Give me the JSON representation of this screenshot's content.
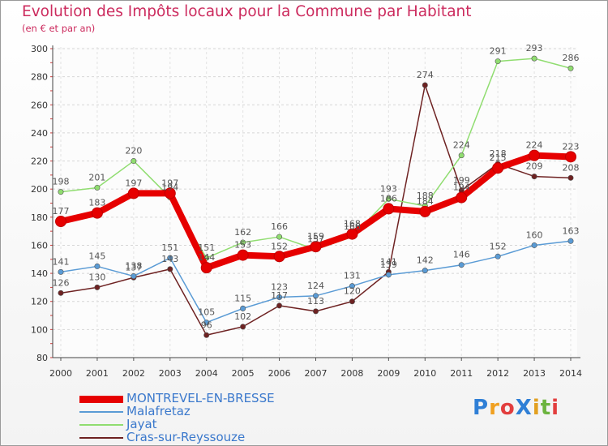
{
  "header": {
    "title": "Evolution des Impôts locaux pour la Commune par Habitant",
    "subtitle": "(en € et par an)"
  },
  "logo": {
    "text": "ProXiti",
    "letters": [
      "P",
      "r",
      "o",
      "X",
      "i",
      "t",
      "i"
    ],
    "colors": [
      "#2f7fd6",
      "#f0a020",
      "#e23e3e",
      "#2f7fd6",
      "#e2a020",
      "#6cb43f",
      "#e23e3e"
    ]
  },
  "chart_data": {
    "type": "line",
    "title": "Evolution des Impôts locaux pour la Commune par Habitant",
    "subtitle": "(en € et par an)",
    "xlabel": "",
    "ylabel": "",
    "ylim": [
      80,
      300
    ],
    "yticks": [
      80,
      100,
      120,
      140,
      160,
      180,
      200,
      220,
      240,
      260,
      280,
      300
    ],
    "grid": true,
    "legend": "bottom-left",
    "x": [
      "2000",
      "2001",
      "2002",
      "2003",
      "2004",
      "2005",
      "2006",
      "2007",
      "2008",
      "2009",
      "2010",
      "2011",
      "2012",
      "2013",
      "2014"
    ],
    "series": [
      {
        "name": "MONTREVEL-EN-BRESSE",
        "color": "#e60000",
        "values": [
          177,
          183,
          197,
          197,
          144,
          153,
          152,
          159,
          168,
          186,
          184,
          194,
          215,
          224,
          223
        ]
      },
      {
        "name": "Malafretaz",
        "color": "#5a9bd5",
        "values": [
          141,
          145,
          138,
          151,
          105,
          115,
          123,
          124,
          131,
          139,
          142,
          146,
          152,
          160,
          163
        ]
      },
      {
        "name": "Jayat",
        "color": "#90dd70",
        "values": [
          198,
          201,
          220,
          194,
          151,
          162,
          166,
          157,
          166,
          193,
          188,
          224,
          291,
          293,
          286
        ]
      },
      {
        "name": "Cras-sur-Reyssouze",
        "color": "#6e2222",
        "values": [
          126,
          130,
          137,
          143,
          96,
          102,
          117,
          113,
          120,
          141,
          274,
          199,
          218,
          209,
          208
        ]
      }
    ]
  }
}
